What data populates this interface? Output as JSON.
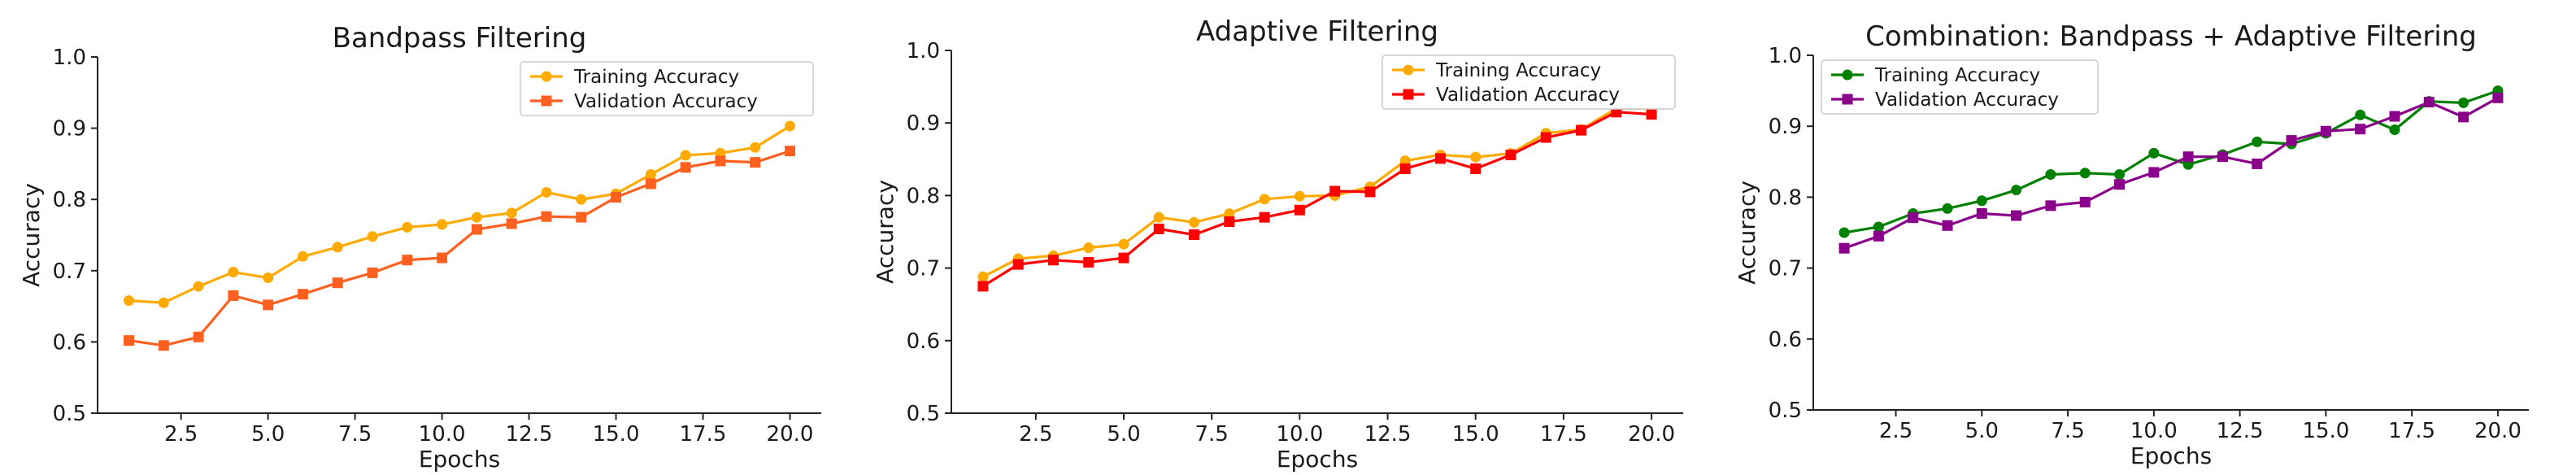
{
  "chart_data": [
    {
      "type": "line",
      "title": "Bandpass Filtering",
      "xlabel": "Epochs",
      "ylabel": "Accuracy",
      "xlim": [
        0.1,
        20.9
      ],
      "ylim": [
        0.5,
        1.0
      ],
      "xticks": [
        2.5,
        5.0,
        7.5,
        10.0,
        12.5,
        15.0,
        17.5,
        20.0
      ],
      "xtick_labels": [
        "2.5",
        "5.0",
        "7.5",
        "10.0",
        "12.5",
        "15.0",
        "17.5",
        "20.0"
      ],
      "yticks": [
        0.5,
        0.6,
        0.7,
        0.8,
        0.9,
        1.0
      ],
      "ytick_labels": [
        "0.5",
        "0.6",
        "0.7",
        "0.8",
        "0.9",
        "1.0"
      ],
      "legend_position": "top-right",
      "x": [
        1,
        2,
        3,
        4,
        5,
        6,
        7,
        8,
        9,
        10,
        11,
        12,
        13,
        14,
        15,
        16,
        17,
        18,
        19,
        20
      ],
      "series": [
        {
          "name": "Training Accuracy",
          "color": "#FFAA00",
          "marker": "circle",
          "values": [
            0.658,
            0.655,
            0.678,
            0.698,
            0.69,
            0.72,
            0.733,
            0.748,
            0.761,
            0.765,
            0.775,
            0.781,
            0.81,
            0.8,
            0.808,
            0.835,
            0.862,
            0.865,
            0.873,
            0.903
          ]
        },
        {
          "name": "Validation Accuracy",
          "color": "#FF5F1F",
          "marker": "square",
          "values": [
            0.602,
            0.595,
            0.607,
            0.665,
            0.652,
            0.667,
            0.683,
            0.697,
            0.715,
            0.718,
            0.758,
            0.766,
            0.776,
            0.775,
            0.803,
            0.822,
            0.845,
            0.854,
            0.852,
            0.868
          ]
        }
      ]
    },
    {
      "type": "line",
      "title": "Adaptive Filtering",
      "xlabel": "Epochs",
      "ylabel": "Accuracy",
      "xlim": [
        0.1,
        20.9
      ],
      "ylim": [
        0.5,
        1.0
      ],
      "xticks": [
        2.5,
        5.0,
        7.5,
        10.0,
        12.5,
        15.0,
        17.5,
        20.0
      ],
      "xtick_labels": [
        "2.5",
        "5.0",
        "7.5",
        "10.0",
        "12.5",
        "15.0",
        "17.5",
        "20.0"
      ],
      "yticks": [
        0.5,
        0.6,
        0.7,
        0.8,
        0.9,
        1.0
      ],
      "ytick_labels": [
        "0.5",
        "0.6",
        "0.7",
        "0.8",
        "0.9",
        "1.0"
      ],
      "legend_position": "top-right",
      "x": [
        1,
        2,
        3,
        4,
        5,
        6,
        7,
        8,
        9,
        10,
        11,
        12,
        13,
        14,
        15,
        16,
        17,
        18,
        19,
        20
      ],
      "series": [
        {
          "name": "Training Accuracy",
          "color": "#FFAA00",
          "marker": "circle",
          "values": [
            0.688,
            0.713,
            0.717,
            0.728,
            0.733,
            0.77,
            0.763,
            0.775,
            0.795,
            0.799,
            0.8,
            0.812,
            0.848,
            0.856,
            0.853,
            0.858,
            0.886,
            0.891,
            0.92,
            0.92
          ]
        },
        {
          "name": "Validation Accuracy",
          "color": "#FF0000",
          "marker": "square",
          "values": [
            0.675,
            0.705,
            0.711,
            0.708,
            0.714,
            0.754,
            0.746,
            0.764,
            0.77,
            0.78,
            0.806,
            0.805,
            0.837,
            0.851,
            0.837,
            0.856,
            0.88,
            0.89,
            0.915,
            0.912
          ]
        }
      ]
    },
    {
      "type": "line",
      "title": "Combination:  Bandpass + Adaptive Filtering",
      "xlabel": "Epochs",
      "ylabel": "Accuracy",
      "xlim": [
        0.1,
        20.9
      ],
      "ylim": [
        0.5,
        1.0
      ],
      "xticks": [
        2.5,
        5.0,
        7.5,
        10.0,
        12.5,
        15.0,
        17.5,
        20.0
      ],
      "xtick_labels": [
        "2.5",
        "5.0",
        "7.5",
        "10.0",
        "12.5",
        "15.0",
        "17.5",
        "20.0"
      ],
      "yticks": [
        0.5,
        0.6,
        0.7,
        0.8,
        0.9,
        1.0
      ],
      "ytick_labels": [
        "0.5",
        "0.6",
        "0.7",
        "0.8",
        "0.9",
        "1.0"
      ],
      "legend_position": "top-left",
      "x": [
        1,
        2,
        3,
        4,
        5,
        6,
        7,
        8,
        9,
        10,
        11,
        12,
        13,
        14,
        15,
        16,
        17,
        18,
        19,
        20
      ],
      "series": [
        {
          "name": "Training Accuracy",
          "color": "#008000",
          "marker": "circle",
          "values": [
            0.75,
            0.758,
            0.777,
            0.784,
            0.795,
            0.81,
            0.832,
            0.834,
            0.832,
            0.862,
            0.846,
            0.86,
            0.878,
            0.875,
            0.89,
            0.916,
            0.895,
            0.935,
            0.933,
            0.95
          ]
        },
        {
          "name": "Validation Accuracy",
          "color": "#8B008B",
          "marker": "square",
          "values": [
            0.728,
            0.745,
            0.771,
            0.76,
            0.777,
            0.774,
            0.788,
            0.793,
            0.818,
            0.835,
            0.857,
            0.857,
            0.847,
            0.88,
            0.893,
            0.896,
            0.914,
            0.934,
            0.913,
            0.94
          ]
        }
      ]
    }
  ]
}
